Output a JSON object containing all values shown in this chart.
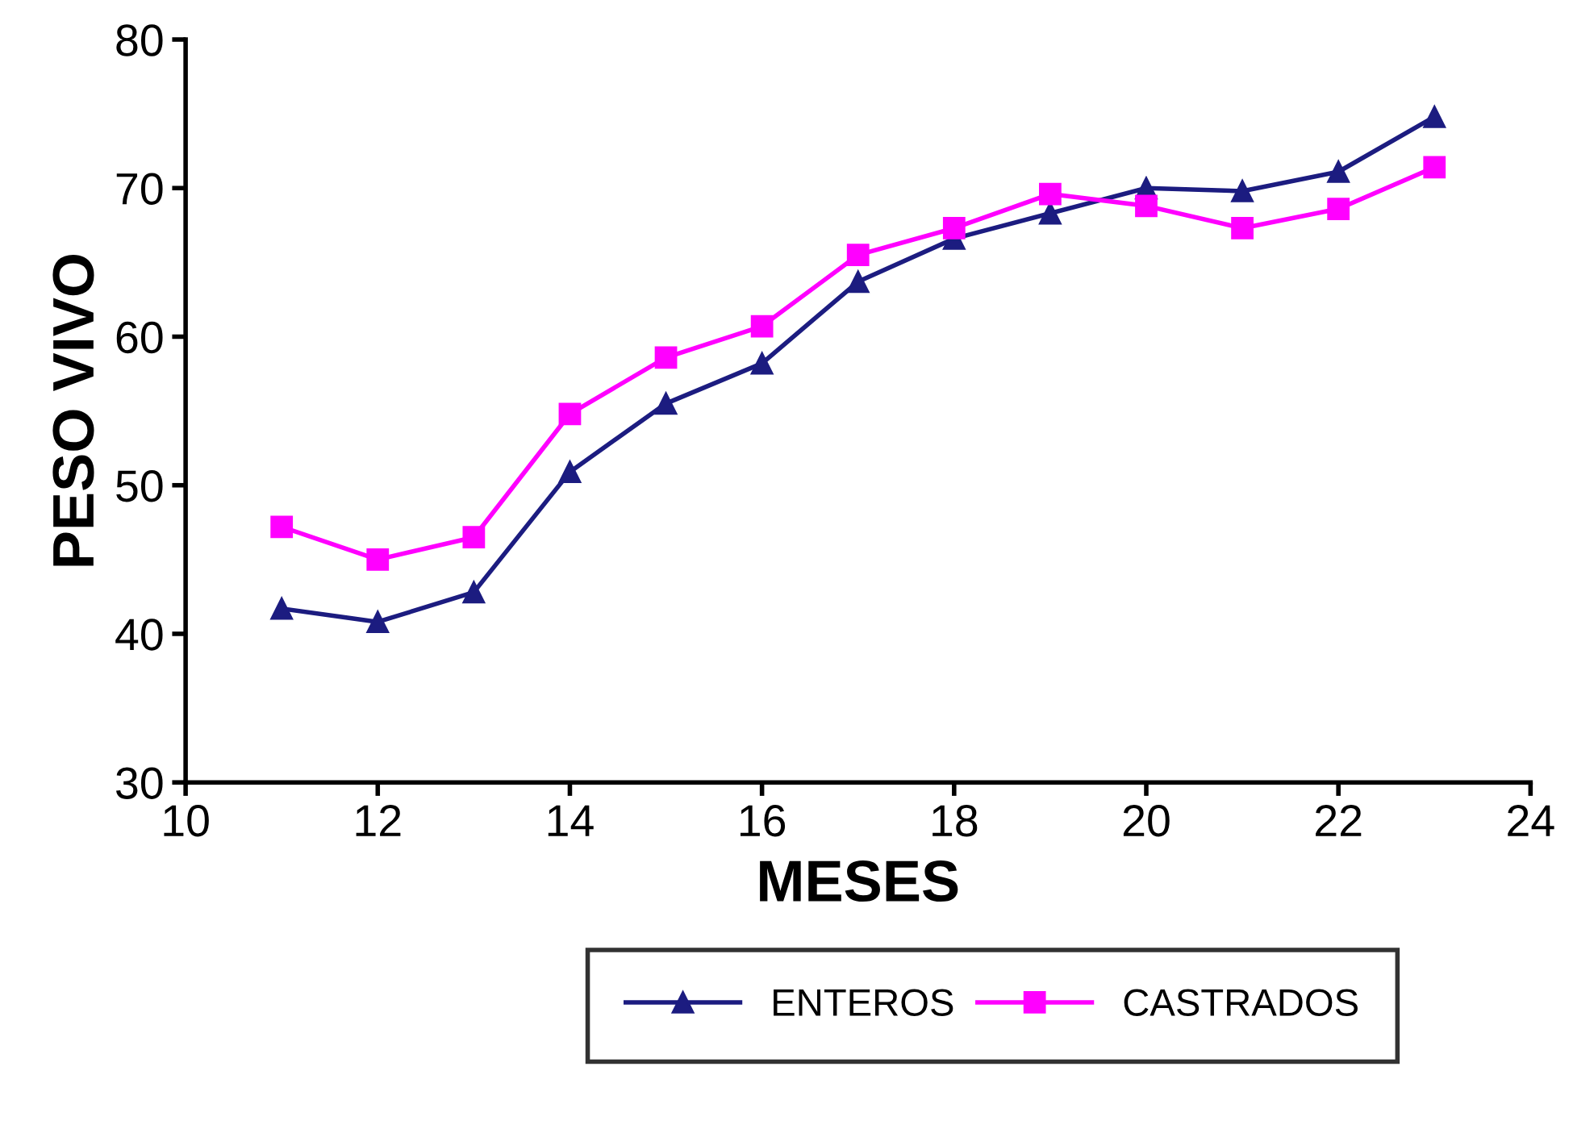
{
  "chart_data": {
    "type": "line",
    "xlabel": "MESES",
    "ylabel": "PESO VIVO",
    "x": [
      11,
      12,
      13,
      14,
      15,
      16,
      17,
      18,
      19,
      20,
      21,
      22,
      23
    ],
    "series": [
      {
        "name": "ENTEROS",
        "color": "#1c1c80",
        "marker": "triangle",
        "values": [
          41.7,
          40.8,
          42.8,
          50.9,
          55.5,
          58.2,
          63.7,
          66.6,
          68.3,
          70.0,
          69.8,
          71.1,
          74.8
        ]
      },
      {
        "name": "CASTRADOS",
        "color": "#ff00ff",
        "marker": "square",
        "values": [
          47.2,
          45.0,
          46.5,
          54.8,
          58.6,
          60.7,
          65.5,
          67.3,
          69.6,
          68.8,
          67.3,
          68.6,
          71.4
        ]
      }
    ],
    "xlim": [
      10,
      24
    ],
    "xticks": [
      10,
      12,
      14,
      16,
      18,
      20,
      22,
      24
    ],
    "ylim": [
      30,
      80
    ],
    "yticks": [
      30,
      40,
      50,
      60,
      70,
      80
    ],
    "grid": false,
    "legend": "bottom",
    "line_style": "solid"
  }
}
